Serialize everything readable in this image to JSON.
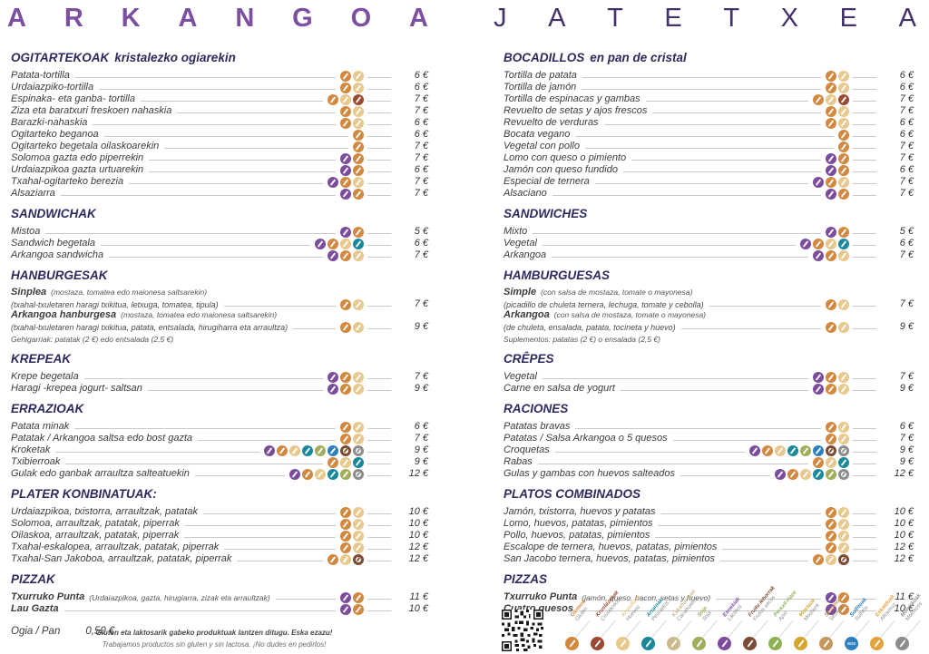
{
  "titles": {
    "left": "ARKANGOA",
    "right": "JATETXEA"
  },
  "colors": {
    "title_left": "#7C4FA1",
    "title_right": "#44306B",
    "heading": "#2D2A5E",
    "text": "#3C3C3C",
    "leader": "#C9C9C9"
  },
  "allergens": {
    "gluten": {
      "eu": "Glutena",
      "es": "Gluten",
      "color": "#D2883F"
    },
    "crustaceos": {
      "eu": "Krustazeoak",
      "es": "Crustáceos",
      "color": "#9C4931"
    },
    "huevos": {
      "eu": "Arraultzak",
      "es": "Huevos",
      "color": "#E8C88C"
    },
    "pescados": {
      "eu": "Arrainak",
      "es": "Pescados",
      "color": "#17899B"
    },
    "cacahuetes": {
      "eu": "Kakahueteak",
      "es": "Cacahuetes",
      "color": "#C9B98B"
    },
    "soja": {
      "eu": "Soja",
      "es": "Soja",
      "color": "#A2AD5E"
    },
    "lacteos": {
      "eu": "Esnekiak",
      "es": "Lácteos",
      "color": "#7B4C9B"
    },
    "frutos_secos": {
      "eu": "Fruitu lehorrak",
      "es": "Frutos secos",
      "color": "#7C4B33",
      "ring": true
    },
    "apio": {
      "eu": "Perexil-Haze",
      "es": "Apio",
      "color": "#8EB055"
    },
    "mostaza": {
      "eu": "Mostaza",
      "es": "Mostaza",
      "color": "#D7A62F"
    },
    "sesamo": {
      "eu": "Sesamo",
      "es": "Sésamo",
      "color": "#C4985C"
    },
    "sulfitos": {
      "eu": "Sulfitoak",
      "es": "Sulfitos",
      "color": "#2E7FBD",
      "glyph_text": "SO2"
    },
    "altramuz": {
      "eu": "Eskalduak",
      "es": "Altramuz",
      "color": "#E2A33C"
    },
    "moluscos": {
      "eu": "Moluskoak",
      "es": "Moluscos",
      "color": "#8C8C8C",
      "ring": true
    }
  },
  "legend_order": [
    "gluten",
    "crustaceos",
    "huevos",
    "pescados",
    "cacahuetes",
    "soja",
    "lacteos",
    "frutos_secos",
    "apio",
    "mostaza",
    "sesamo",
    "sulfitos",
    "altramuz",
    "moluscos"
  ],
  "left_column": {
    "sections": [
      {
        "title": "OGITARTEKOAK",
        "subtitle": "kristalezko ogiarekin",
        "items": [
          {
            "name": "Patata-tortilla",
            "icons": [
              "gluten",
              "huevos"
            ],
            "price": "6 €"
          },
          {
            "name": "Urdaiazpiko-tortilla",
            "icons": [
              "gluten",
              "huevos"
            ],
            "price": "6 €"
          },
          {
            "name": "Espinaka- eta ganba- tortilla",
            "icons": [
              "gluten",
              "huevos",
              "crustaceos"
            ],
            "price": "7 €"
          },
          {
            "name": "Ziza eta baratxuri freskoen nahaskia",
            "icons": [
              "gluten",
              "huevos"
            ],
            "price": "7 €"
          },
          {
            "name": "Barazki-nahaskia",
            "icons": [
              "gluten",
              "huevos"
            ],
            "price": "6 €"
          },
          {
            "name": "Ogitarteko beganoa",
            "icons": [
              "gluten"
            ],
            "price": "6 €"
          },
          {
            "name": "Ogitarteko begetala oilaskoarekin",
            "icons": [
              "gluten"
            ],
            "price": "7 €"
          },
          {
            "name": "Solomoa gazta edo piperrekin",
            "icons": [
              "lacteos",
              "gluten"
            ],
            "price": "7 €"
          },
          {
            "name": "Urdaiazpikoa gazta urtuarekin",
            "icons": [
              "lacteos",
              "gluten"
            ],
            "price": "6 €"
          },
          {
            "name": "Txahal-ogitarteko berezia",
            "icons": [
              "lacteos",
              "gluten",
              "huevos"
            ],
            "price": "7 €"
          },
          {
            "name": "Alsaziarra",
            "icons": [
              "lacteos",
              "gluten"
            ],
            "price": "7 €"
          }
        ]
      },
      {
        "title": "SANDWICHAK",
        "items": [
          {
            "name": "Mistoa",
            "icons": [
              "lacteos",
              "gluten"
            ],
            "price": "5 €"
          },
          {
            "name": "Sandwich begetala",
            "icons": [
              "lacteos",
              "gluten",
              "huevos",
              "pescados"
            ],
            "price": "6 €"
          },
          {
            "name": "Arkangoa sandwicha",
            "icons": [
              "lacteos",
              "gluten",
              "huevos"
            ],
            "price": "7 €"
          }
        ]
      },
      {
        "title": "HANBURGESAK",
        "items": [
          {
            "name": "Sinplea",
            "bold": true,
            "sub": "(mostaza, tomatea edo maionesa saltsarekin)",
            "line2": "(txahal-txuletaren haragi txikitua, letxuga, tomatea, tipula)",
            "icons": [
              "gluten",
              "huevos"
            ],
            "price": "7 €"
          },
          {
            "name": "Arkangoa hanburgesa",
            "bold": true,
            "sub": "(mostaza, tomatea edo maionesa saltsarekin)",
            "line2": "(txahal-txuletaren haragi txikitua, patata, entsalada, hirugiharra eta arraultza)",
            "icons": [
              "gluten",
              "huevos"
            ],
            "price": "9 €"
          }
        ],
        "footnote": "Gehigarriak: patatak (2 €) edo entsalada (2,5 €)"
      },
      {
        "title": "KREPEAK",
        "items": [
          {
            "name": "Krepe begetala",
            "icons": [
              "lacteos",
              "gluten",
              "huevos"
            ],
            "price": "7 €"
          },
          {
            "name": "Haragi -krepea jogurt- saltsan",
            "icons": [
              "lacteos",
              "gluten",
              "huevos"
            ],
            "price": "9 €"
          }
        ]
      },
      {
        "title": "ERRAZIOAK",
        "items": [
          {
            "name": "Patata minak",
            "icons": [
              "gluten",
              "huevos"
            ],
            "price": "6 €"
          },
          {
            "name": "Patatak / Arkangoa saltsa edo bost gazta",
            "icons": [
              "gluten",
              "huevos"
            ],
            "price": "7 €"
          },
          {
            "name": "Kroketak",
            "icons": [
              "lacteos",
              "gluten",
              "huevos",
              "pescados",
              "soja",
              "sulfitos",
              "frutos_secos",
              "moluscos"
            ],
            "price": "9 €"
          },
          {
            "name": "Txibierroak",
            "icons": [
              "gluten",
              "huevos",
              "pescados"
            ],
            "price": "9 €"
          },
          {
            "name": "Gulak edo ganbak arraultza salteatuekin",
            "icons": [
              "lacteos",
              "gluten",
              "huevos",
              "pescados",
              "soja",
              "moluscos"
            ],
            "price": "12 €"
          }
        ]
      },
      {
        "title": "PLATER KONBINATUAK:",
        "items": [
          {
            "name": "Urdaiazpikoa, txistorra, arraultzak, patatak",
            "icons": [
              "gluten",
              "huevos"
            ],
            "price": "10 €"
          },
          {
            "name": "Solomoa, arraultzak, patatak, piperrak",
            "icons": [
              "gluten",
              "huevos"
            ],
            "price": "10 €"
          },
          {
            "name": "Oilaskoa, arraultzak, patatak, piperrak",
            "icons": [
              "gluten",
              "huevos"
            ],
            "price": "10 €"
          },
          {
            "name": "Txahal-eskalopea, arraultzak, patatak, piperrak",
            "icons": [
              "gluten",
              "huevos"
            ],
            "price": "12 €"
          },
          {
            "name": "Txahal-San Jakoboa, arraultzak, patatak, piperrak",
            "icons": [
              "gluten",
              "huevos",
              "frutos_secos"
            ],
            "price": "12 €"
          }
        ]
      },
      {
        "title": "PIZZAK",
        "items": [
          {
            "name": "Txurruko Punta",
            "bold": true,
            "sub": "(Urdaiazpikoa, gazta, hirugiarra, zizak eta arraultzak)",
            "icons": [
              "lacteos",
              "gluten"
            ],
            "price": "11 €"
          },
          {
            "name": "Lau Gazta",
            "bold": true,
            "icons": [
              "lacteos",
              "gluten"
            ],
            "price": "10 €"
          }
        ]
      }
    ]
  },
  "right_column": {
    "sections": [
      {
        "title": "BOCADILLOS",
        "subtitle": "en pan de cristal",
        "items": [
          {
            "name": "Tortilla de patata",
            "icons": [
              "gluten",
              "huevos"
            ],
            "price": "6 €"
          },
          {
            "name": "Tortilla de jamón",
            "icons": [
              "gluten",
              "huevos"
            ],
            "price": "6 €"
          },
          {
            "name": "Tortilla de espinacas y gambas",
            "icons": [
              "gluten",
              "huevos",
              "crustaceos"
            ],
            "price": "7 €"
          },
          {
            "name": "Revuelto de setas y ajos frescos",
            "icons": [
              "gluten",
              "huevos"
            ],
            "price": "7 €"
          },
          {
            "name": "Revuelto de verduras",
            "icons": [
              "gluten",
              "huevos"
            ],
            "price": "6 €"
          },
          {
            "name": "Bocata vegano",
            "icons": [
              "gluten"
            ],
            "price": "6 €"
          },
          {
            "name": "Vegetal con pollo",
            "icons": [
              "gluten"
            ],
            "price": "7 €"
          },
          {
            "name": "Lomo con queso o pimiento",
            "icons": [
              "lacteos",
              "gluten"
            ],
            "price": "7 €"
          },
          {
            "name": "Jamón con queso fundido",
            "icons": [
              "lacteos",
              "gluten"
            ],
            "price": "6 €"
          },
          {
            "name": "Especial de ternera",
            "icons": [
              "lacteos",
              "gluten",
              "huevos"
            ],
            "price": "7 €"
          },
          {
            "name": "Alsaciano",
            "icons": [
              "lacteos",
              "gluten"
            ],
            "price": "7 €"
          }
        ]
      },
      {
        "title": "SANDWICHES",
        "items": [
          {
            "name": "Mixto",
            "icons": [
              "lacteos",
              "gluten"
            ],
            "price": "5 €"
          },
          {
            "name": "Vegetal",
            "icons": [
              "lacteos",
              "gluten",
              "huevos",
              "pescados"
            ],
            "price": "6 €"
          },
          {
            "name": "Arkangoa",
            "icons": [
              "lacteos",
              "gluten",
              "huevos"
            ],
            "price": "7 €"
          }
        ]
      },
      {
        "title": "HAMBURGUESAS",
        "items": [
          {
            "name": "Simple",
            "bold": true,
            "sub": "(con salsa de mostaza, tomate o mayonesa)",
            "line2": "(picadillo de chuleta ternera, lechuga, tomate y cebolla)",
            "icons": [
              "gluten",
              "huevos"
            ],
            "price": "7 €"
          },
          {
            "name": "Arkangoa",
            "bold": true,
            "sub": "(con salsa de mostaza, tomate o mayonesa)",
            "line2": "(de chuleta, ensalada, patata, tocineta y huevo)",
            "icons": [
              "gluten",
              "huevos"
            ],
            "price": "9 €"
          }
        ],
        "footnote": "Suplementos: patatas (2 €) o ensalada (2,5 €)"
      },
      {
        "title": "CRÊPES",
        "items": [
          {
            "name": "Vegetal",
            "icons": [
              "lacteos",
              "gluten",
              "huevos"
            ],
            "price": "7 €"
          },
          {
            "name": "Carne en salsa de yogurt",
            "icons": [
              "lacteos",
              "gluten",
              "huevos"
            ],
            "price": "9 €"
          }
        ]
      },
      {
        "title": "RACIONES",
        "items": [
          {
            "name": "Patatas bravas",
            "icons": [
              "gluten",
              "huevos"
            ],
            "price": "6 €"
          },
          {
            "name": "Patatas / Salsa Arkangoa o 5 quesos",
            "icons": [
              "gluten",
              "huevos"
            ],
            "price": "7 €"
          },
          {
            "name": "Croquetas",
            "icons": [
              "lacteos",
              "gluten",
              "huevos",
              "pescados",
              "soja",
              "sulfitos",
              "frutos_secos",
              "moluscos"
            ],
            "price": "9 €"
          },
          {
            "name": "Rabas",
            "icons": [
              "gluten",
              "huevos",
              "pescados"
            ],
            "price": "9 €"
          },
          {
            "name": "Gulas y gambas con huevos salteados",
            "icons": [
              "lacteos",
              "gluten",
              "huevos",
              "pescados",
              "soja",
              "moluscos"
            ],
            "price": "12 €"
          }
        ]
      },
      {
        "title": "PLATOS COMBINADOS",
        "items": [
          {
            "name": "Jamón, txistorra, huevos y patatas",
            "icons": [
              "gluten",
              "huevos"
            ],
            "price": "10 €"
          },
          {
            "name": "Lomo, huevos, patatas, pimientos",
            "icons": [
              "gluten",
              "huevos"
            ],
            "price": "10 €"
          },
          {
            "name": "Pollo, huevos, patatas, pimientos",
            "icons": [
              "gluten",
              "huevos"
            ],
            "price": "10 €"
          },
          {
            "name": "Escalope de ternera, huevos, patatas, pimientos",
            "icons": [
              "gluten",
              "huevos"
            ],
            "price": "12 €"
          },
          {
            "name": "San Jacobo ternera, huevos, patatas, pimientos",
            "icons": [
              "gluten",
              "huevos",
              "frutos_secos"
            ],
            "price": "12 €"
          }
        ]
      },
      {
        "title": "PIZZAS",
        "items": [
          {
            "name": "Txurruko Punta",
            "bold": true,
            "sub": "(jamón, queso, bacon, setas y huevo)",
            "icons": [
              "lacteos",
              "gluten"
            ],
            "price": "11 €"
          },
          {
            "name": "Cuatro quesos",
            "bold": true,
            "icons": [
              "lacteos",
              "gluten"
            ],
            "price": "10 €"
          }
        ]
      }
    ]
  },
  "bread": {
    "label": "Ogia / Pan",
    "price": "0,50 €"
  },
  "footer": {
    "line1": "Gluten eta laktosarik gabeko produktuak lantzen ditugu. Eska ezazu!",
    "line2": "Trabajamos productos sin gluten y sin lactosa. ¡No dudes en pedirlos!"
  }
}
